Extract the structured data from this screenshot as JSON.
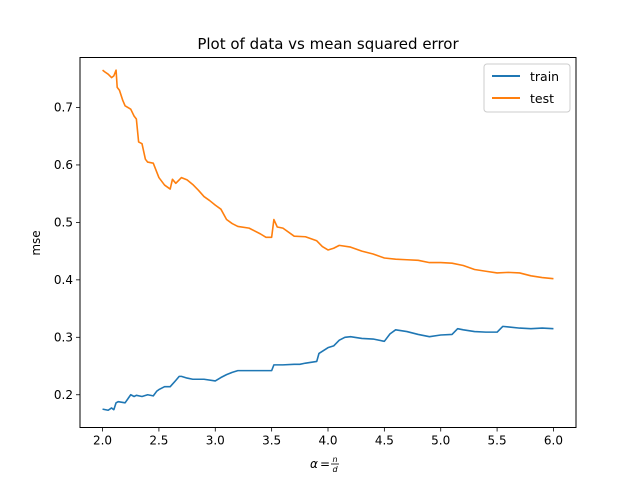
{
  "chart_data": {
    "type": "line",
    "title": "Plot of data vs mean squared error",
    "xlabel": "",
    "ylabel": "mse",
    "xlim": [
      1.8,
      6.2
    ],
    "ylim": [
      0.143,
      0.787
    ],
    "xticks": [
      2.0,
      2.5,
      3.0,
      3.5,
      4.0,
      4.5,
      5.0,
      5.5,
      6.0
    ],
    "xtick_labels": [
      "2.0",
      "2.5",
      "3.0",
      "3.5",
      "4.0",
      "4.5",
      "5.0",
      "5.5",
      "6.0"
    ],
    "yticks": [
      0.2,
      0.3,
      0.4,
      0.5,
      0.6,
      0.7
    ],
    "ytick_labels": [
      "0.2",
      "0.3",
      "0.4",
      "0.5",
      "0.6",
      "0.7"
    ],
    "grid": false,
    "legend": "top-right",
    "series": [
      {
        "name": "train",
        "color": "#1f77b4",
        "x": [
          2.0,
          2.05,
          2.08,
          2.1,
          2.12,
          2.14,
          2.2,
          2.25,
          2.28,
          2.3,
          2.35,
          2.4,
          2.45,
          2.48,
          2.5,
          2.55,
          2.6,
          2.65,
          2.68,
          2.7,
          2.75,
          2.8,
          2.9,
          3.0,
          3.05,
          3.1,
          3.15,
          3.2,
          3.3,
          3.4,
          3.5,
          3.52,
          3.6,
          3.7,
          3.75,
          3.8,
          3.9,
          3.92,
          4.0,
          4.05,
          4.1,
          4.15,
          4.2,
          4.3,
          4.4,
          4.5,
          4.55,
          4.6,
          4.7,
          4.8,
          4.9,
          5.0,
          5.1,
          5.15,
          5.2,
          5.3,
          5.4,
          5.5,
          5.55,
          5.6,
          5.7,
          5.8,
          5.9,
          6.0
        ],
        "values": [
          0.175,
          0.173,
          0.177,
          0.174,
          0.186,
          0.188,
          0.186,
          0.2,
          0.197,
          0.199,
          0.197,
          0.2,
          0.198,
          0.206,
          0.209,
          0.214,
          0.214,
          0.225,
          0.232,
          0.232,
          0.229,
          0.227,
          0.227,
          0.224,
          0.23,
          0.235,
          0.239,
          0.242,
          0.242,
          0.242,
          0.242,
          0.252,
          0.252,
          0.253,
          0.253,
          0.255,
          0.258,
          0.272,
          0.282,
          0.285,
          0.295,
          0.3,
          0.301,
          0.298,
          0.297,
          0.293,
          0.306,
          0.313,
          0.31,
          0.305,
          0.301,
          0.304,
          0.305,
          0.315,
          0.313,
          0.31,
          0.309,
          0.309,
          0.319,
          0.318,
          0.316,
          0.315,
          0.316,
          0.315
        ]
      },
      {
        "name": "test",
        "color": "#ff7f0e",
        "x": [
          2.0,
          2.02,
          2.05,
          2.08,
          2.1,
          2.12,
          2.13,
          2.15,
          2.18,
          2.2,
          2.25,
          2.28,
          2.3,
          2.32,
          2.35,
          2.38,
          2.4,
          2.45,
          2.5,
          2.55,
          2.6,
          2.62,
          2.65,
          2.7,
          2.75,
          2.8,
          2.85,
          2.9,
          2.95,
          3.0,
          3.05,
          3.1,
          3.15,
          3.2,
          3.3,
          3.4,
          3.45,
          3.5,
          3.52,
          3.55,
          3.6,
          3.7,
          3.8,
          3.9,
          3.95,
          4.0,
          4.05,
          4.1,
          4.2,
          4.3,
          4.4,
          4.5,
          4.6,
          4.7,
          4.8,
          4.9,
          5.0,
          5.1,
          5.2,
          5.3,
          5.4,
          5.5,
          5.6,
          5.7,
          5.8,
          5.9,
          6.0
        ],
        "values": [
          0.765,
          0.762,
          0.758,
          0.752,
          0.755,
          0.765,
          0.735,
          0.73,
          0.712,
          0.703,
          0.697,
          0.685,
          0.68,
          0.64,
          0.637,
          0.61,
          0.605,
          0.603,
          0.578,
          0.565,
          0.558,
          0.575,
          0.568,
          0.578,
          0.574,
          0.566,
          0.556,
          0.545,
          0.538,
          0.53,
          0.523,
          0.505,
          0.498,
          0.493,
          0.49,
          0.48,
          0.474,
          0.474,
          0.505,
          0.492,
          0.49,
          0.476,
          0.475,
          0.468,
          0.458,
          0.452,
          0.455,
          0.46,
          0.457,
          0.45,
          0.445,
          0.438,
          0.436,
          0.435,
          0.434,
          0.43,
          0.43,
          0.429,
          0.425,
          0.418,
          0.415,
          0.412,
          0.413,
          0.412,
          0.407,
          0.404,
          0.402
        ]
      }
    ]
  }
}
